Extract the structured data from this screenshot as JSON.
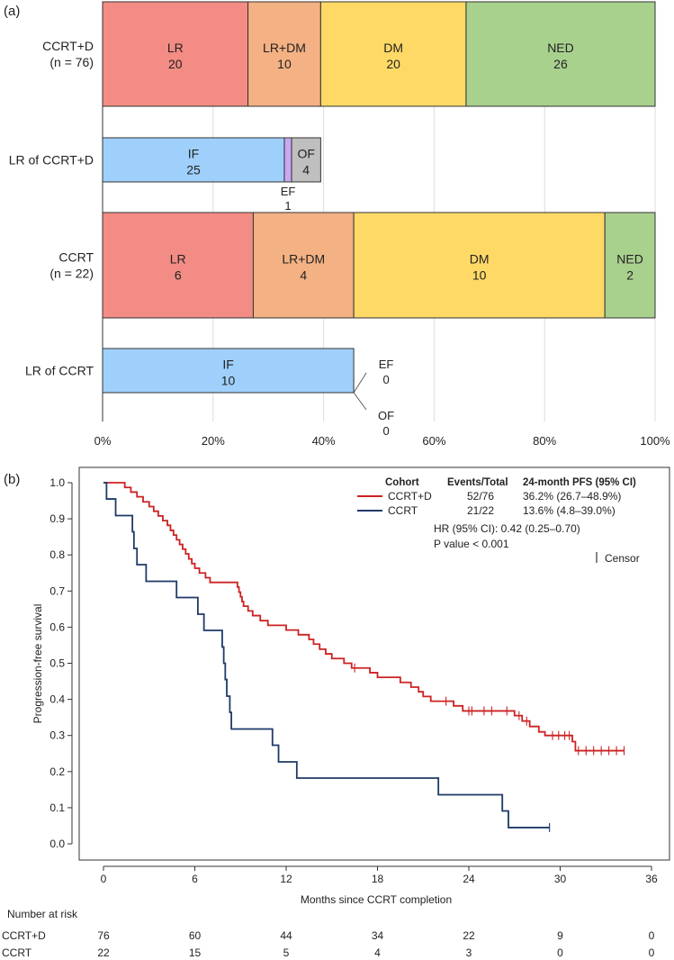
{
  "chart_data": [
    {
      "panel": "(a)",
      "type": "bar",
      "orientation": "horizontal",
      "stacked": true,
      "percent_axis": true,
      "xlim": [
        0,
        100
      ],
      "xticks": [
        "0%",
        "20%",
        "40%",
        "60%",
        "80%",
        "100%"
      ],
      "grid": true,
      "rows": [
        {
          "label_lines": [
            "CCRT+D",
            "(n = 76)"
          ],
          "total": 76,
          "thick": true,
          "segments": [
            {
              "name": "LR",
              "value": 20,
              "color": "#f28c84"
            },
            {
              "name": "LR+DM",
              "value": 10,
              "color": "#f4b183"
            },
            {
              "name": "DM",
              "value": 20,
              "color": "#ffd966"
            },
            {
              "name": "NED",
              "value": 26,
              "color": "#a9d18e"
            }
          ]
        },
        {
          "label_lines": [
            "LR of CCRT+D"
          ],
          "total": 76,
          "thick": false,
          "segments": [
            {
              "name": "IF",
              "value": 25,
              "color": "#9fd0fb"
            },
            {
              "name": "EF",
              "value": 1,
              "color": "#c8a8f0",
              "label_below": true
            },
            {
              "name": "OF",
              "value": 4,
              "color": "#bfbfbf"
            }
          ]
        },
        {
          "label_lines": [
            "CCRT",
            "(n = 22)"
          ],
          "total": 22,
          "thick": true,
          "segments": [
            {
              "name": "LR",
              "value": 6,
              "color": "#f28c84"
            },
            {
              "name": "LR+DM",
              "value": 4,
              "color": "#f4b183"
            },
            {
              "name": "DM",
              "value": 10,
              "color": "#ffd966"
            },
            {
              "name": "NED",
              "value": 2,
              "color": "#a9d18e"
            }
          ]
        },
        {
          "label_lines": [
            "LR of CCRT"
          ],
          "total": 22,
          "thick": false,
          "segments": [
            {
              "name": "IF",
              "value": 10,
              "color": "#9fd0fb"
            }
          ],
          "zero_labels": [
            {
              "name": "EF",
              "value": 0
            },
            {
              "name": "OF",
              "value": 0
            }
          ]
        }
      ]
    },
    {
      "panel": "(b)",
      "type": "line",
      "subtype": "kaplan-meier",
      "xlabel": "Months since CCRT completion",
      "ylabel": "Progression-free survival",
      "xlim": [
        0,
        36
      ],
      "ylim": [
        0,
        1
      ],
      "xticks": [
        0,
        6,
        12,
        18,
        24,
        30,
        36
      ],
      "yticks": [
        "0.0",
        "0.1",
        "0.2",
        "0.3",
        "0.4",
        "0.5",
        "0.6",
        "0.7",
        "0.8",
        "0.9",
        "1.0"
      ],
      "legend": {
        "position": "top-right",
        "headers": [
          "Cohort",
          "Events/Total",
          "24-month PFS (95% CI)"
        ],
        "rows": [
          {
            "name": "CCRT+D",
            "events": "52/76",
            "pfs": "36.2% (26.7–48.9%)"
          },
          {
            "name": "CCRT",
            "events": "21/22",
            "pfs": "13.6% (4.8–39.0%)"
          }
        ],
        "hr": "HR (95% CI): 0.42 (0.25–0.70)",
        "p": "P value < 0.001",
        "censor_label": "Censor"
      },
      "series": [
        {
          "name": "CCRT+D",
          "color": "#cc2222",
          "steps": [
            [
              0,
              1.0
            ],
            [
              1.4,
              0.987
            ],
            [
              1.8,
              0.974
            ],
            [
              2.2,
              0.961
            ],
            [
              2.6,
              0.947
            ],
            [
              3.0,
              0.934
            ],
            [
              3.3,
              0.921
            ],
            [
              3.6,
              0.908
            ],
            [
              3.9,
              0.895
            ],
            [
              4.2,
              0.882
            ],
            [
              4.4,
              0.868
            ],
            [
              4.6,
              0.855
            ],
            [
              4.8,
              0.842
            ],
            [
              5.0,
              0.829
            ],
            [
              5.2,
              0.816
            ],
            [
              5.4,
              0.803
            ],
            [
              5.6,
              0.789
            ],
            [
              5.8,
              0.776
            ],
            [
              6.0,
              0.763
            ],
            [
              6.3,
              0.75
            ],
            [
              6.7,
              0.737
            ],
            [
              7.0,
              0.724
            ],
            [
              8.8,
              0.711
            ],
            [
              8.9,
              0.697
            ],
            [
              9.0,
              0.684
            ],
            [
              9.1,
              0.671
            ],
            [
              9.2,
              0.658
            ],
            [
              9.5,
              0.645
            ],
            [
              9.8,
              0.632
            ],
            [
              10.3,
              0.618
            ],
            [
              10.8,
              0.605
            ],
            [
              12.0,
              0.592
            ],
            [
              12.8,
              0.579
            ],
            [
              13.5,
              0.566
            ],
            [
              13.8,
              0.553
            ],
            [
              14.2,
              0.539
            ],
            [
              14.6,
              0.526
            ],
            [
              15.0,
              0.513
            ],
            [
              15.8,
              0.5
            ],
            [
              16.3,
              0.487
            ],
            [
              17.5,
              0.474
            ],
            [
              18.0,
              0.461
            ],
            [
              19.5,
              0.447
            ],
            [
              20.2,
              0.434
            ],
            [
              20.7,
              0.421
            ],
            [
              21.0,
              0.408
            ],
            [
              21.5,
              0.395
            ],
            [
              23.0,
              0.382
            ],
            [
              23.6,
              0.368
            ],
            [
              27.0,
              0.355
            ],
            [
              27.5,
              0.34
            ],
            [
              28.0,
              0.325
            ],
            [
              28.6,
              0.31
            ],
            [
              29.0,
              0.3
            ],
            [
              30.8,
              0.283
            ],
            [
              31.0,
              0.258
            ]
          ],
          "end": 34.2,
          "censor": [
            16.5,
            22.5,
            24.0,
            24.2,
            25.0,
            25.5,
            26.5,
            27.3,
            27.8,
            29.5,
            29.9,
            30.3,
            30.6,
            31.2,
            31.7,
            32.2,
            32.7,
            33.2,
            33.7,
            34.2
          ]
        },
        {
          "name": "CCRT",
          "color": "#1f3a68",
          "steps": [
            [
              0,
              1.0
            ],
            [
              0.2,
              0.955
            ],
            [
              0.8,
              0.909
            ],
            [
              1.9,
              0.864
            ],
            [
              2.0,
              0.818
            ],
            [
              2.2,
              0.773
            ],
            [
              2.8,
              0.727
            ],
            [
              4.8,
              0.682
            ],
            [
              6.2,
              0.636
            ],
            [
              6.6,
              0.591
            ],
            [
              7.8,
              0.545
            ],
            [
              7.9,
              0.5
            ],
            [
              8.0,
              0.455
            ],
            [
              8.1,
              0.409
            ],
            [
              8.3,
              0.364
            ],
            [
              8.4,
              0.318
            ],
            [
              11.1,
              0.273
            ],
            [
              11.5,
              0.227
            ],
            [
              12.7,
              0.182
            ],
            [
              22.0,
              0.136
            ],
            [
              26.2,
              0.091
            ],
            [
              26.6,
              0.045
            ]
          ],
          "end": 29.3,
          "censor": [
            29.3
          ]
        }
      ],
      "risk_table": {
        "title": "Number at risk",
        "timepoints": [
          0,
          6,
          12,
          18,
          24,
          30,
          36
        ],
        "rows": [
          {
            "name": "CCRT+D",
            "values": [
              76,
              60,
              44,
              34,
              22,
              9,
              0
            ]
          },
          {
            "name": "CCRT",
            "values": [
              22,
              15,
              5,
              4,
              3,
              0,
              0
            ]
          }
        ]
      }
    }
  ]
}
